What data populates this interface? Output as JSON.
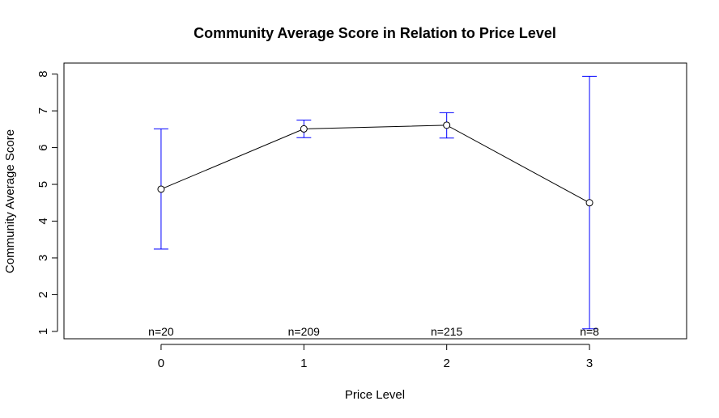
{
  "chart_data": {
    "type": "line",
    "title": "Community Average Score in Relation to Price Level",
    "xlabel": "Price Level",
    "ylabel": "Community Average Score",
    "categories": [
      "0",
      "1",
      "2",
      "3"
    ],
    "x": [
      0,
      1,
      2,
      3
    ],
    "xlim": [
      -0.68,
      3.68
    ],
    "ylim": [
      0.8,
      8.3
    ],
    "yticks": [
      1,
      2,
      3,
      4,
      5,
      6,
      7,
      8
    ],
    "grid": false,
    "series": [
      {
        "values": [
          4.87,
          6.51,
          6.61,
          4.5
        ],
        "ci_lower": [
          3.24,
          6.27,
          6.26,
          1.07
        ],
        "ci_upper": [
          6.51,
          6.75,
          6.95,
          7.94
        ],
        "line_color": "#000000",
        "error_bar_color": "#0000ff"
      }
    ],
    "annotations": [
      "n=20",
      "n=209",
      "n=215",
      "n=8"
    ],
    "annotation_y": 1.0
  }
}
